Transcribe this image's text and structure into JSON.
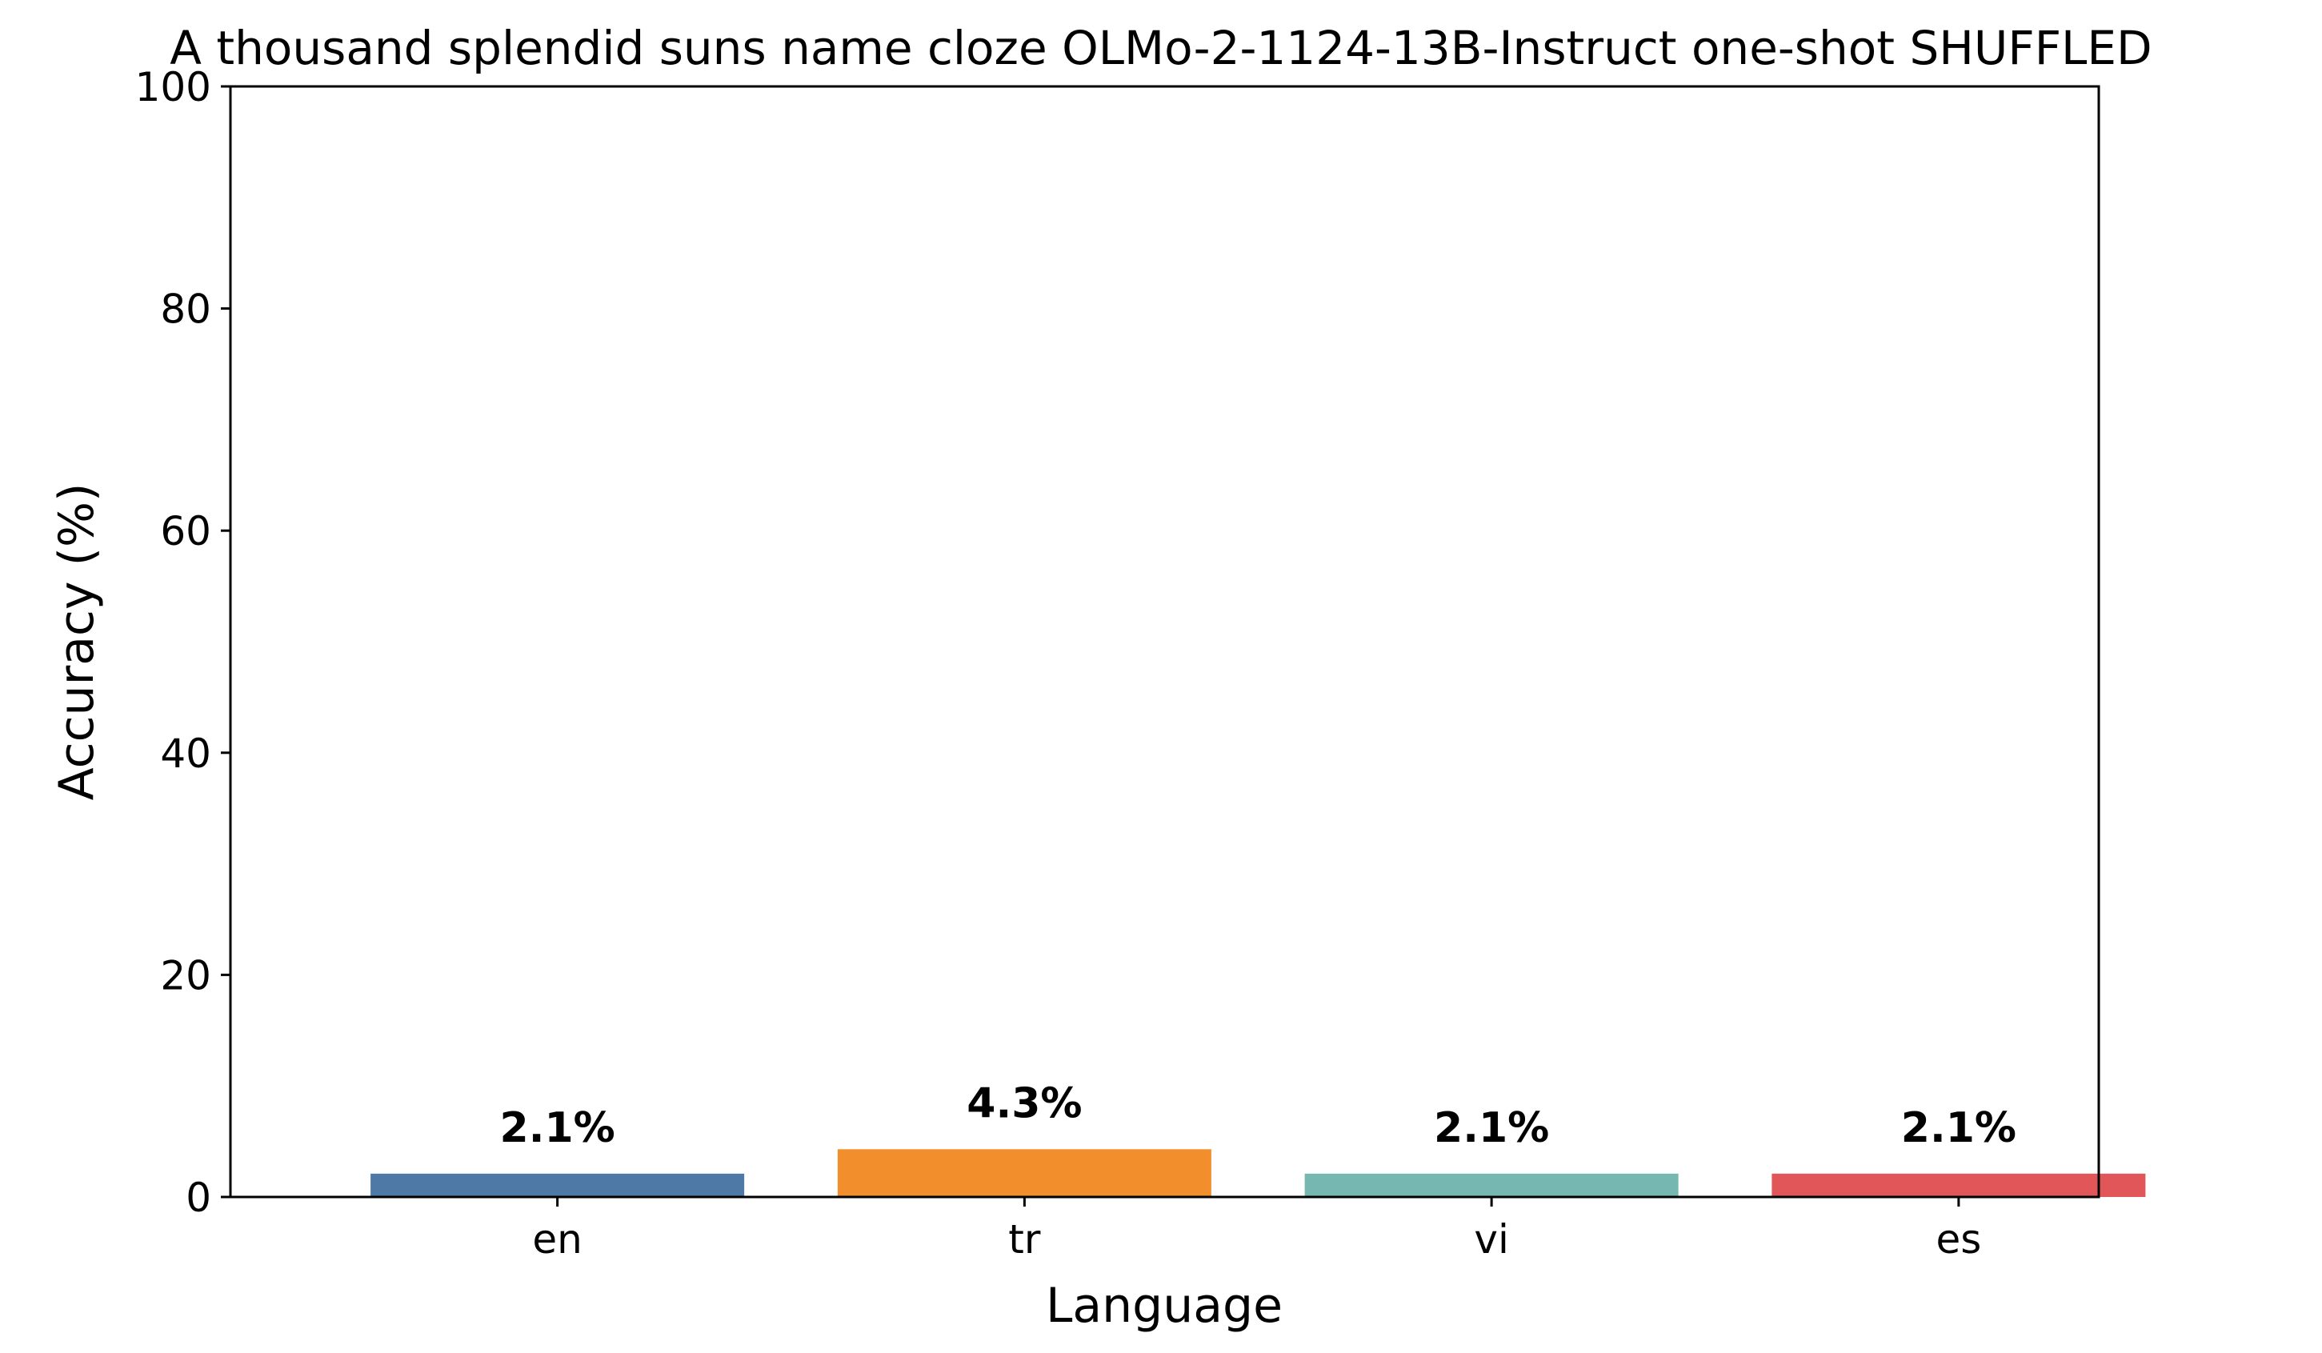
{
  "chart_data": {
    "type": "bar",
    "title": "A thousand splendid suns name cloze OLMo-2-1124-13B-Instruct one-shot SHUFFLED",
    "xlabel": "Language",
    "ylabel": "Accuracy (%)",
    "categories": [
      "en",
      "tr",
      "vi",
      "es"
    ],
    "values": [
      2.1,
      4.3,
      2.1,
      2.1
    ],
    "value_labels": [
      "2.1%",
      "4.3%",
      "2.1%",
      "2.1%"
    ],
    "colors": [
      "#4e79a7",
      "#f28e2b",
      "#76b7b2",
      "#e15759"
    ],
    "ylim": [
      0,
      100
    ],
    "yticks": [
      0,
      20,
      40,
      60,
      80,
      100
    ],
    "grid": false,
    "legend": "none"
  }
}
